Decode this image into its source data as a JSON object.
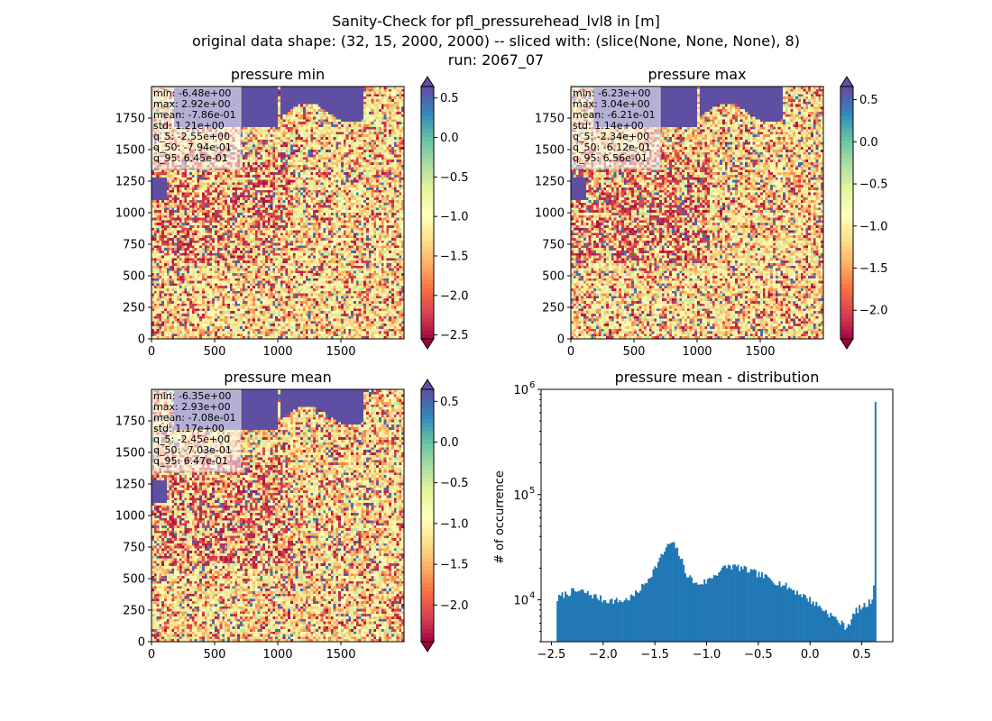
{
  "figure": {
    "title_lines": [
      "Sanity-Check for pfl_pressurehead_lvl8 in [m]",
      "original data shape: (32, 15, 2000, 2000) -- sliced with: (slice(None, None, None), 8)",
      "run: 2067_07"
    ]
  },
  "colors": {
    "ocean": "#5e4fa2",
    "hist_bar": "#1f77b4",
    "colormap": [
      "#9e0142",
      "#d53e4f",
      "#f46d43",
      "#fdae61",
      "#fee08b",
      "#ffffbf",
      "#e6f598",
      "#abdda4",
      "#66c2a5",
      "#3288bd",
      "#5e4fa2"
    ]
  },
  "chart_data": [
    {
      "type": "heatmap",
      "title": "pressure min",
      "x_ticks": [
        "0",
        "500",
        "1000",
        "1500"
      ],
      "y_ticks": [
        "0",
        "250",
        "500",
        "750",
        "1000",
        "1250",
        "1500",
        "1750"
      ],
      "xlim": [
        0,
        2000
      ],
      "ylim": [
        0,
        2000
      ],
      "stats": [
        "min: -6.48e+00",
        "max: 2.92e+00",
        "mean: -7.86e-01",
        "std: 1.21e+00",
        "q_5: -2.55e+00",
        "q_50: -7.94e-01",
        "q_95: 6.45e-01"
      ],
      "colorbar": {
        "vmin": -2.55,
        "vmax": 0.645,
        "extend": "both",
        "ticks": [
          "0.5",
          "0.0",
          "−0.5",
          "−1.0",
          "−1.5",
          "−2.0",
          "−2.5"
        ],
        "tick_values": [
          0.5,
          0.0,
          -0.5,
          -1.0,
          -1.5,
          -2.0,
          -2.5
        ]
      }
    },
    {
      "type": "heatmap",
      "title": "pressure max",
      "x_ticks": [
        "0",
        "500",
        "1000",
        "1500"
      ],
      "y_ticks": [
        "0",
        "250",
        "500",
        "750",
        "1000",
        "1250",
        "1500",
        "1750"
      ],
      "xlim": [
        0,
        2000
      ],
      "ylim": [
        0,
        2000
      ],
      "stats": [
        "min: -6.23e+00",
        "max: 3.04e+00",
        "mean: -6.21e-01",
        "std: 1.14e+00",
        "q_5: -2.34e+00",
        "q_50: -6.12e-01",
        "q_95: 6.56e-01"
      ],
      "colorbar": {
        "vmin": -2.34,
        "vmax": 0.656,
        "extend": "both",
        "ticks": [
          "0.5",
          "0.0",
          "−0.5",
          "−1.0",
          "−1.5",
          "−2.0"
        ],
        "tick_values": [
          0.5,
          0.0,
          -0.5,
          -1.0,
          -1.5,
          -2.0
        ]
      }
    },
    {
      "type": "heatmap",
      "title": "pressure mean",
      "x_ticks": [
        "0",
        "500",
        "1000",
        "1500"
      ],
      "y_ticks": [
        "0",
        "250",
        "500",
        "750",
        "1000",
        "1250",
        "1500",
        "1750"
      ],
      "xlim": [
        0,
        2000
      ],
      "ylim": [
        0,
        2000
      ],
      "stats": [
        "min: -6.35e+00",
        "max: 2.93e+00",
        "mean: -7.08e-01",
        "std: 1.17e+00",
        "q_5: -2.45e+00",
        "q_50: -7.03e-01",
        "q_95: 6.47e-01"
      ],
      "colorbar": {
        "vmin": -2.45,
        "vmax": 0.647,
        "extend": "both",
        "ticks": [
          "0.5",
          "0.0",
          "−0.5",
          "−1.0",
          "−1.5",
          "−2.0"
        ],
        "tick_values": [
          0.5,
          0.0,
          -0.5,
          -1.0,
          -1.5,
          -2.0
        ]
      }
    },
    {
      "type": "bar",
      "title": "pressure mean - distribution",
      "xlabel": "",
      "ylabel": "# of occurrence",
      "yscale": "log",
      "xlim": [
        -2.6,
        0.8
      ],
      "ylim": [
        4000,
        1000000
      ],
      "x_ticks": [
        "−2.5",
        "−2.0",
        "−1.5",
        "−1.0",
        "−0.5",
        "0.0",
        "0.5"
      ],
      "x_tick_values": [
        -2.5,
        -2.0,
        -1.5,
        -1.0,
        -0.5,
        0.0,
        0.5
      ],
      "y_major_ticks": [
        "10",
        "10",
        "10"
      ],
      "y_major_exponents": [
        "4",
        "5",
        "6"
      ],
      "y_major_values": [
        10000,
        100000,
        1000000
      ],
      "profile": {
        "x": [
          -2.45,
          -2.4,
          -2.3,
          -2.2,
          -2.1,
          -2.0,
          -1.9,
          -1.8,
          -1.7,
          -1.6,
          -1.5,
          -1.4,
          -1.35,
          -1.3,
          -1.25,
          -1.2,
          -1.1,
          -1.0,
          -0.9,
          -0.8,
          -0.7,
          -0.6,
          -0.5,
          -0.4,
          -0.3,
          -0.2,
          -0.1,
          0.0,
          0.1,
          0.2,
          0.3,
          0.35,
          0.4,
          0.45,
          0.5,
          0.55,
          0.6,
          0.62,
          0.64
        ],
        "y": [
          10000,
          11000,
          12000,
          12000,
          11000,
          10000,
          9800,
          9800,
          11000,
          14000,
          20000,
          30000,
          35000,
          32000,
          25000,
          18000,
          14000,
          15000,
          18000,
          21000,
          20500,
          19000,
          17500,
          16000,
          14500,
          13000,
          11500,
          10000,
          8500,
          7200,
          6000,
          5500,
          6500,
          8000,
          8500,
          9000,
          10000,
          16000,
          760000
        ]
      },
      "n_bins": 200
    }
  ]
}
